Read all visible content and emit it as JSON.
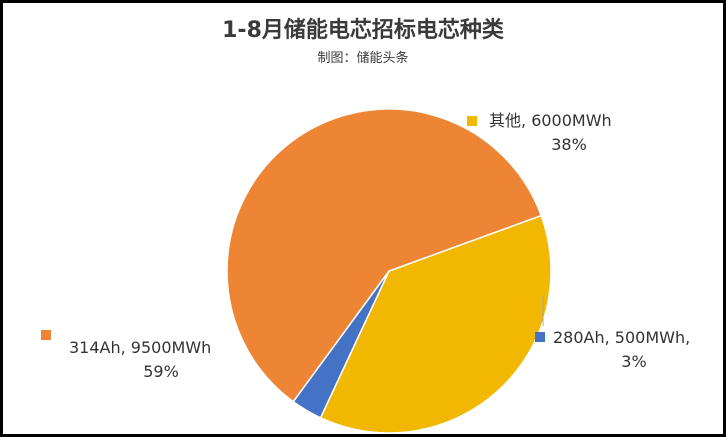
{
  "chart_data": {
    "type": "pie",
    "title": "1-8月储能电芯招标电芯种类",
    "subtitle": "制图：储能头条",
    "slices": [
      {
        "name": "其他",
        "value_text": "6000MWh",
        "percent_text": "38%",
        "value": 6000,
        "color": "#F2B700"
      },
      {
        "name": "280Ah",
        "value_text": "500MWh,",
        "percent_text": "3%",
        "value": 500,
        "color": "#4472C4"
      },
      {
        "name": "314Ah",
        "value_text": "9500MWh",
        "percent_text": "59%",
        "value": 9500,
        "color": "#ED8534"
      }
    ],
    "legend": "none"
  }
}
